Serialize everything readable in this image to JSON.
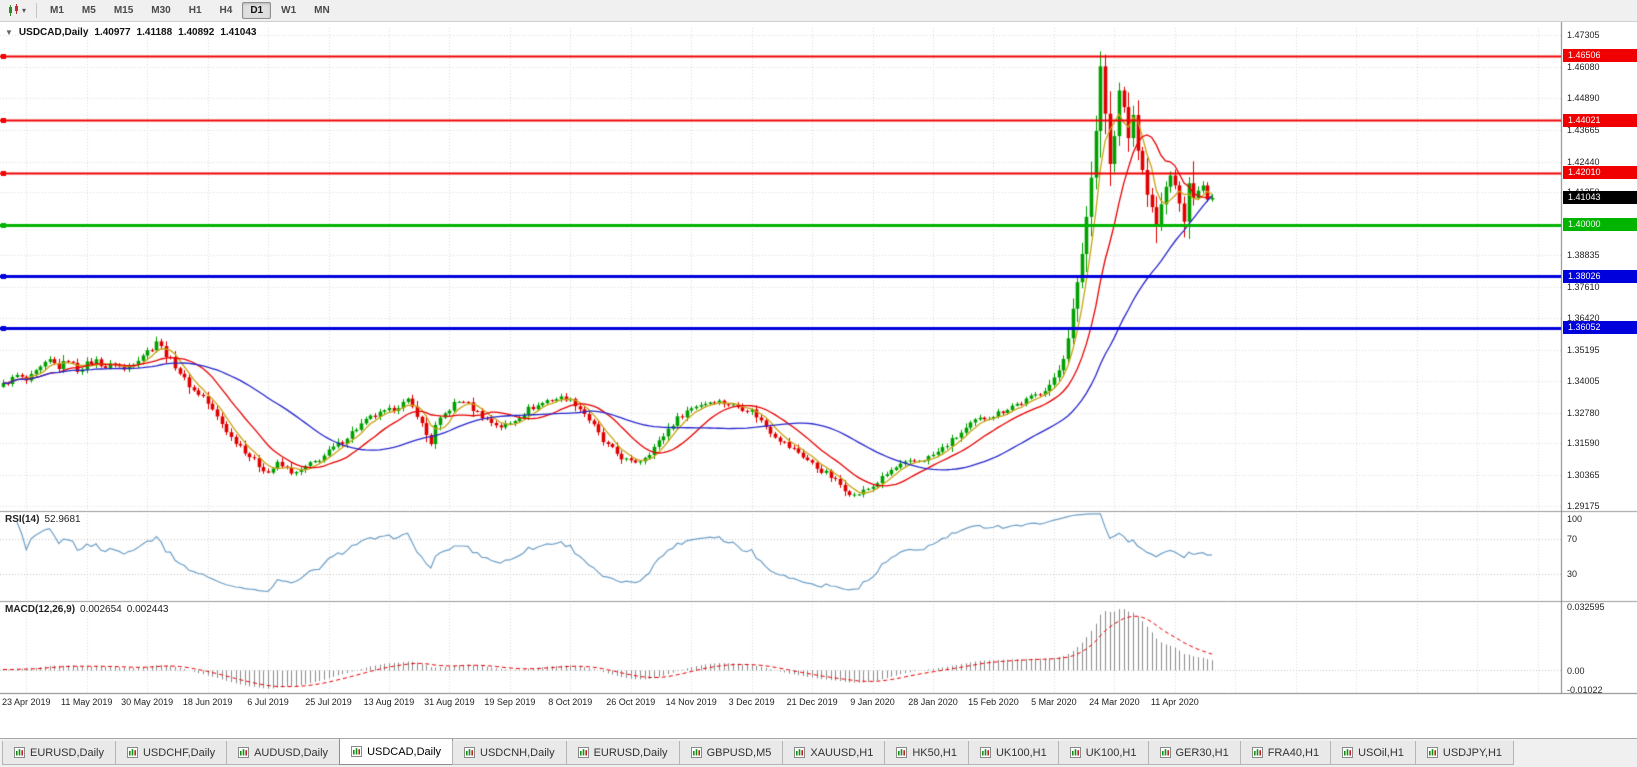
{
  "toolbar": {
    "chart_dropdown_caret": "▾",
    "timeframes": [
      "M1",
      "M5",
      "M15",
      "M30",
      "H1",
      "H4",
      "D1",
      "W1",
      "MN"
    ],
    "active_timeframe": "D1"
  },
  "chart_header": {
    "collapse_icon": "▼",
    "symbol": "USDCAD,Daily",
    "open": "1.40977",
    "high": "1.41188",
    "low": "1.40892",
    "close": "1.41043"
  },
  "price_axis": {
    "ticks": [
      "1.47305",
      "1.46080",
      "1.44890",
      "1.43665",
      "1.42440",
      "1.41250",
      "1.40025",
      "1.38835",
      "1.37610",
      "1.36420",
      "1.35195",
      "1.34005",
      "1.32780",
      "1.31590",
      "1.30365",
      "1.29175"
    ]
  },
  "date_axis": {
    "labels": [
      "23 Apr 2019",
      "11 May 2019",
      "30 May 2019",
      "18 Jun 2019",
      "6 Jul 2019",
      "25 Jul 2019",
      "13 Aug 2019",
      "31 Aug 2019",
      "19 Sep 2019",
      "8 Oct 2019",
      "26 Oct 2019",
      "14 Nov 2019",
      "3 Dec 2019",
      "21 Dec 2019",
      "9 Jan 2020",
      "28 Jan 2020",
      "15 Feb 2020",
      "5 Mar 2020",
      "24 Mar 2020",
      "11 Apr 2020"
    ]
  },
  "sr_lines": [
    {
      "price": 1.46506,
      "label": "1.46506",
      "color": "#f00000",
      "width": 2
    },
    {
      "price": 1.44021,
      "label": "1.44021",
      "color": "#f00000",
      "width": 2
    },
    {
      "price": 1.4201,
      "label": "1.42010",
      "color": "#f00000",
      "width": 2
    },
    {
      "price": 1.4,
      "label": "1.40000",
      "color": "#00b400",
      "width": 3
    },
    {
      "price": 1.38026,
      "label": "1.38026",
      "color": "#0000dc",
      "width": 3
    },
    {
      "price": 1.36052,
      "label": "1.36052",
      "color": "#0000dc",
      "width": 3
    }
  ],
  "current_price_tag": {
    "price": 1.41043,
    "label": "1.41043",
    "color": "#000000"
  },
  "rsi_panel": {
    "name": "RSI(14)",
    "value": "52.9681",
    "axis_labels": [
      {
        "text": "100",
        "value": 100
      },
      {
        "text": "70",
        "value": 70
      },
      {
        "text": "30",
        "value": 30
      }
    ]
  },
  "macd_panel": {
    "name": "MACD(12,26,9)",
    "main_value": "0.002654",
    "signal_value": "0.002443",
    "axis_labels": [
      {
        "text": "0.032595",
        "value": 0.032595
      },
      {
        "text": "0.00",
        "value": 0
      },
      {
        "text": "-0.01022",
        "value": -0.01022
      }
    ]
  },
  "bottom_tabs": {
    "active_index": 3,
    "tabs": [
      "EURUSD,Daily",
      "USDCHF,Daily",
      "AUDUSD,Daily",
      "USDCAD,Daily",
      "USDCNH,Daily",
      "EURUSD,Daily",
      "GBPUSD,M5",
      "XAUUSD,H1",
      "HK50,H1",
      "UK100,H1",
      "UK100,H1",
      "GER30,H1",
      "FRA40,H1",
      "USOil,H1",
      "USDJPY,H1"
    ]
  },
  "colors": {
    "background": "#ffffff",
    "grid": "#dcdcdc",
    "candle_up": "#00a000",
    "candle_down": "#e00000",
    "rsi_line": "#6fa0c8",
    "rsi_levels": "#c8c8c8",
    "macd_histogram": "#8c8c8c",
    "macd_signal": "#e80000",
    "separator": "#9a9a9a",
    "axis_line": "#808080",
    "axis_text": "#1a1a1a"
  },
  "chart_data": {
    "type": "candlestick",
    "symbol": "USDCAD",
    "timeframe": "Daily",
    "last_candle": {
      "open": 1.40977,
      "high": 1.41188,
      "low": 1.40892,
      "close": 1.41043
    },
    "price_axis_range": {
      "top": 1.4758,
      "bottom": 1.2903
    },
    "x_axis": {
      "labels_candles_per_step": 13,
      "first_label_candle_index": 5
    },
    "num_candles": 261,
    "noise_amplitude": 0.0011,
    "close_anchors": [
      [
        0,
        1.3385
      ],
      [
        3,
        1.342
      ],
      [
        5,
        1.34
      ],
      [
        8,
        1.3448
      ],
      [
        10,
        1.3478
      ],
      [
        12,
        1.3452
      ],
      [
        14,
        1.3482
      ],
      [
        16,
        1.3442
      ],
      [
        18,
        1.3465
      ],
      [
        20,
        1.3478
      ],
      [
        22,
        1.3452
      ],
      [
        24,
        1.3468
      ],
      [
        26,
        1.3442
      ],
      [
        28,
        1.3472
      ],
      [
        30,
        1.3502
      ],
      [
        32,
        1.3528
      ],
      [
        33,
        1.3555
      ],
      [
        35,
        1.3502
      ],
      [
        37,
        1.3458
      ],
      [
        39,
        1.3405
      ],
      [
        41,
        1.3362
      ],
      [
        43,
        1.334
      ],
      [
        45,
        1.3285
      ],
      [
        47,
        1.3235
      ],
      [
        49,
        1.3182
      ],
      [
        51,
        1.3152
      ],
      [
        53,
        1.311
      ],
      [
        55,
        1.3075
      ],
      [
        57,
        1.3048
      ],
      [
        59,
        1.308
      ],
      [
        61,
        1.306
      ],
      [
        63,
        1.3042
      ],
      [
        65,
        1.3068
      ],
      [
        67,
        1.3088
      ],
      [
        69,
        1.3112
      ],
      [
        71,
        1.3142
      ],
      [
        73,
        1.3168
      ],
      [
        75,
        1.3202
      ],
      [
        77,
        1.3232
      ],
      [
        79,
        1.3258
      ],
      [
        81,
        1.3272
      ],
      [
        83,
        1.3285
      ],
      [
        85,
        1.3305
      ],
      [
        87,
        1.3322
      ],
      [
        89,
        1.3272
      ],
      [
        91,
        1.3192
      ],
      [
        92,
        1.3162
      ],
      [
        93,
        1.3225
      ],
      [
        95,
        1.3272
      ],
      [
        97,
        1.3312
      ],
      [
        99,
        1.3325
      ],
      [
        101,
        1.3292
      ],
      [
        103,
        1.3265
      ],
      [
        105,
        1.324
      ],
      [
        107,
        1.3225
      ],
      [
        109,
        1.3235
      ],
      [
        111,
        1.3265
      ],
      [
        113,
        1.3292
      ],
      [
        115,
        1.3305
      ],
      [
        117,
        1.3325
      ],
      [
        119,
        1.3332
      ],
      [
        121,
        1.3335
      ],
      [
        123,
        1.3312
      ],
      [
        125,
        1.3275
      ],
      [
        127,
        1.3225
      ],
      [
        129,
        1.3165
      ],
      [
        131,
        1.3135
      ],
      [
        133,
        1.3105
      ],
      [
        135,
        1.3085
      ],
      [
        137,
        1.3095
      ],
      [
        139,
        1.3125
      ],
      [
        141,
        1.3165
      ],
      [
        143,
        1.3215
      ],
      [
        145,
        1.3255
      ],
      [
        147,
        1.3285
      ],
      [
        149,
        1.3305
      ],
      [
        151,
        1.3315
      ],
      [
        153,
        1.3325
      ],
      [
        155,
        1.3315
      ],
      [
        157,
        1.3305
      ],
      [
        159,
        1.3295
      ],
      [
        161,
        1.3285
      ],
      [
        163,
        1.3245
      ],
      [
        165,
        1.3205
      ],
      [
        167,
        1.3175
      ],
      [
        169,
        1.3145
      ],
      [
        171,
        1.3125
      ],
      [
        173,
        1.3095
      ],
      [
        175,
        1.3065
      ],
      [
        177,
        1.3045
      ],
      [
        179,
        1.3015
      ],
      [
        181,
        1.2985
      ],
      [
        183,
        1.2958
      ],
      [
        185,
        1.2975
      ],
      [
        187,
        1.2995
      ],
      [
        189,
        1.3025
      ],
      [
        191,
        1.3055
      ],
      [
        193,
        1.3075
      ],
      [
        195,
        1.3085
      ],
      [
        197,
        1.3095
      ],
      [
        199,
        1.3105
      ],
      [
        201,
        1.3125
      ],
      [
        203,
        1.3155
      ],
      [
        205,
        1.3185
      ],
      [
        207,
        1.3215
      ],
      [
        209,
        1.3245
      ],
      [
        211,
        1.3258
      ],
      [
        213,
        1.3268
      ],
      [
        215,
        1.3285
      ],
      [
        217,
        1.3305
      ],
      [
        219,
        1.3315
      ],
      [
        221,
        1.3335
      ],
      [
        223,
        1.3355
      ],
      [
        225,
        1.3385
      ],
      [
        226,
        1.3405
      ],
      [
        227,
        1.3442
      ],
      [
        228,
        1.3492
      ],
      [
        229,
        1.3572
      ],
      [
        230,
        1.3672
      ],
      [
        231,
        1.3772
      ],
      [
        232,
        1.3892
      ],
      [
        233,
        1.4032
      ],
      [
        234,
        1.4182
      ],
      [
        235,
        1.4372
      ],
      [
        236,
        1.4612
      ],
      [
        237,
        1.4432
      ],
      [
        238,
        1.4232
      ],
      [
        239,
        1.4342
      ],
      [
        240,
        1.4512
      ],
      [
        241,
        1.4452
      ],
      [
        242,
        1.4332
      ],
      [
        243,
        1.4422
      ],
      [
        244,
        1.4292
      ],
      [
        245,
        1.4202
      ],
      [
        246,
        1.4122
      ],
      [
        247,
        1.4062
      ],
      [
        248,
        1.4002
      ],
      [
        249,
        1.4072
      ],
      [
        250,
        1.4142
      ],
      [
        251,
        1.4192
      ],
      [
        252,
        1.4142
      ],
      [
        253,
        1.4092
      ],
      [
        254,
        1.4022
      ],
      [
        255,
        1.4162
      ],
      [
        256,
        1.4102
      ],
      [
        257,
        1.4132
      ],
      [
        258,
        1.4152
      ],
      [
        259,
        1.40977
      ],
      [
        260,
        1.41043
      ]
    ],
    "wick_overrides": [
      {
        "i": 183,
        "l": 1.2952
      },
      {
        "i": 236,
        "h": 1.4668
      },
      {
        "i": 248,
        "l": 1.393
      },
      {
        "i": 254,
        "l": 1.3952
      },
      {
        "i": 256,
        "h": 1.4245
      },
      {
        "i": 260,
        "o": 1.40977,
        "h": 1.41188,
        "l": 1.40892,
        "c": 1.41043
      }
    ],
    "moving_averages": [
      {
        "period": 5,
        "color": "#c9a416"
      },
      {
        "period": 13,
        "color": "#e80000"
      },
      {
        "period": 34,
        "color": "#2626cc"
      }
    ],
    "horizontal_levels": [
      1.46506,
      1.44021,
      1.4201,
      1.4,
      1.38026,
      1.36052
    ],
    "current_price": 1.41043,
    "indicators": {
      "rsi": {
        "period": 14,
        "current": 52.9681,
        "range": [
          0,
          100
        ],
        "levels": [
          70,
          30
        ]
      },
      "macd": {
        "fast": 12,
        "slow": 26,
        "signal": 9,
        "current_main": 0.002654,
        "current_signal": 0.002443,
        "display_range": [
          -0.0115,
          0.034
        ]
      }
    }
  }
}
